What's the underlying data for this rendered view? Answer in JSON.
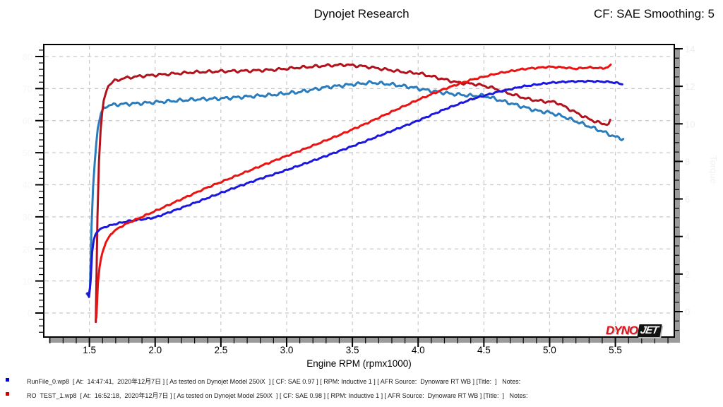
{
  "header": {
    "title": "Dynojet Research",
    "cf_label": "CF: SAE Smoothing: 5"
  },
  "logo": {
    "dyno": "DYNO",
    "jet": "JET"
  },
  "runs": [
    {
      "marker_color": "#0000d4",
      "label": "RunFile_0.wp8  [ At:  14:47:41,  2020年12月7日 ] [ As tested on Dynojet Model 250iX  ] [ CF: SAE 0.97 ] [ RPM: Inductive 1 ] [ AFR Source:  Dynoware RT WB ] [Title:  ]   Notes:"
    },
    {
      "marker_color": "#d40000",
      "label": "RO  TEST_1.wp8  [ At:  16:52:18,  2020年12月7日 ] [ As tested on Dynojet Model 250iX  ] [ CF: SAE 0.98 ] [ RPM: Inductive 1 ] [ AFR Source:  Dynoware RT WB ] [Title:  ]   Notes:"
    }
  ],
  "chart_data": {
    "type": "line",
    "title": "Dynojet Research",
    "xlabel": "Engine RPM (rpmx1000)",
    "x_ticks": [
      1.5,
      2.0,
      2.5,
      3.0,
      3.5,
      4.0,
      4.5,
      5.0,
      5.5
    ],
    "xlim": [
      1.153,
      5.948
    ],
    "x_minor_step": 0.1,
    "grid": "dashed",
    "grid_color": "#c8c8c8",
    "frame_color": "#000000",
    "shadow_color": "#9b9b9b",
    "left_axis": {
      "label": "",
      "ticks": [
        0,
        10,
        20,
        30,
        40,
        50,
        60,
        70,
        80
      ],
      "minor_step": 2,
      "lim": [
        -7.49,
        83.74
      ],
      "tick_label_color": "#f6f6f6"
    },
    "right_axis": {
      "label": "Torque",
      "ticks": [
        0,
        2,
        4,
        6,
        8,
        10,
        12,
        14
      ],
      "minor_step": 0.5,
      "lim": [
        -1.355,
        14.225
      ],
      "tick_label_color": "#ededed",
      "label_color": "#f1f1f1"
    },
    "series": [
      {
        "name": "runfile0-torque",
        "run": "RunFile_0.wp8",
        "axis": "right",
        "color": "#2a7cbd",
        "width": 3,
        "wiggle_amp": 2.2,
        "wiggle_wl": 0.085,
        "points": [
          [
            1.48,
            0.95
          ],
          [
            1.497,
            0.82
          ],
          [
            1.503,
            0.9
          ],
          [
            1.507,
            2.2
          ],
          [
            1.513,
            3.8
          ],
          [
            1.52,
            5.4
          ],
          [
            1.53,
            6.9
          ],
          [
            1.545,
            8.4
          ],
          [
            1.562,
            9.7
          ],
          [
            1.585,
            10.5
          ],
          [
            1.615,
            10.9
          ],
          [
            1.66,
            11.0
          ],
          [
            1.75,
            11.05
          ],
          [
            1.9,
            11.1
          ],
          [
            2.1,
            11.2
          ],
          [
            2.3,
            11.3
          ],
          [
            2.5,
            11.35
          ],
          [
            2.7,
            11.45
          ],
          [
            2.9,
            11.55
          ],
          [
            3.1,
            11.7
          ],
          [
            3.3,
            11.95
          ],
          [
            3.5,
            12.1
          ],
          [
            3.65,
            12.2
          ],
          [
            3.8,
            12.1
          ],
          [
            3.95,
            11.95
          ],
          [
            4.1,
            11.75
          ],
          [
            4.25,
            11.6
          ],
          [
            4.4,
            11.5
          ],
          [
            4.5,
            11.5
          ],
          [
            4.6,
            11.3
          ],
          [
            4.75,
            11.0
          ],
          [
            4.9,
            10.7
          ],
          [
            5.0,
            10.6
          ],
          [
            5.1,
            10.4
          ],
          [
            5.25,
            10.0
          ],
          [
            5.4,
            9.6
          ],
          [
            5.5,
            9.3
          ],
          [
            5.56,
            9.2
          ]
        ]
      },
      {
        "name": "rotest1-torque",
        "run": "RO TEST_1.wp8",
        "axis": "right",
        "color": "#b1121c",
        "width": 3,
        "wiggle_amp": 1.8,
        "wiggle_wl": 0.09,
        "points": [
          [
            1.549,
            -0.55
          ],
          [
            1.552,
            1.0
          ],
          [
            1.556,
            3.0
          ],
          [
            1.561,
            5.0
          ],
          [
            1.568,
            7.0
          ],
          [
            1.577,
            8.8
          ],
          [
            1.59,
            10.2
          ],
          [
            1.61,
            11.3
          ],
          [
            1.64,
            12.0
          ],
          [
            1.69,
            12.3
          ],
          [
            1.78,
            12.45
          ],
          [
            1.9,
            12.55
          ],
          [
            2.1,
            12.65
          ],
          [
            2.3,
            12.75
          ],
          [
            2.5,
            12.8
          ],
          [
            2.7,
            12.82
          ],
          [
            2.9,
            12.88
          ],
          [
            3.1,
            13.0
          ],
          [
            3.3,
            13.1
          ],
          [
            3.45,
            13.15
          ],
          [
            3.6,
            13.05
          ],
          [
            3.75,
            12.9
          ],
          [
            3.9,
            12.75
          ],
          [
            4.0,
            12.7
          ],
          [
            4.15,
            12.45
          ],
          [
            4.3,
            12.2
          ],
          [
            4.45,
            12.1
          ],
          [
            4.55,
            11.95
          ],
          [
            4.7,
            11.6
          ],
          [
            4.85,
            11.3
          ],
          [
            4.95,
            11.2
          ],
          [
            5.05,
            11.15
          ],
          [
            5.2,
            10.6
          ],
          [
            5.3,
            10.25
          ],
          [
            5.4,
            10.0
          ],
          [
            5.45,
            10.0
          ],
          [
            5.47,
            10.25
          ]
        ]
      },
      {
        "name": "runfile0-power",
        "run": "RunFile_0.wp8",
        "axis": "left",
        "color": "#1b17dd",
        "width": 3,
        "wiggle_amp": 1.0,
        "wiggle_wl": 0.07,
        "points": [
          [
            1.485,
            6.2
          ],
          [
            1.497,
            5.0
          ],
          [
            1.503,
            5.3
          ],
          [
            1.508,
            9.0
          ],
          [
            1.514,
            14.0
          ],
          [
            1.521,
            19.0
          ],
          [
            1.531,
            22.5
          ],
          [
            1.55,
            25.0
          ],
          [
            1.59,
            26.4
          ],
          [
            1.64,
            27.1
          ],
          [
            1.71,
            27.9
          ],
          [
            1.8,
            28.7
          ],
          [
            1.9,
            29.2
          ],
          [
            2.0,
            29.8
          ],
          [
            2.2,
            32.8
          ],
          [
            2.4,
            35.9
          ],
          [
            2.6,
            39.0
          ],
          [
            2.8,
            41.9
          ],
          [
            3.0,
            44.6
          ],
          [
            3.2,
            47.5
          ],
          [
            3.4,
            50.5
          ],
          [
            3.6,
            53.6
          ],
          [
            3.8,
            56.8
          ],
          [
            4.0,
            60.0
          ],
          [
            4.2,
            63.5
          ],
          [
            4.4,
            66.6
          ],
          [
            4.6,
            68.9
          ],
          [
            4.8,
            70.7
          ],
          [
            5.0,
            71.8
          ],
          [
            5.15,
            72.2
          ],
          [
            5.3,
            72.3
          ],
          [
            5.45,
            72.1
          ],
          [
            5.52,
            71.7
          ],
          [
            5.56,
            71.3
          ]
        ]
      },
      {
        "name": "rotest1-power",
        "run": "RO TEST_1.wp8",
        "axis": "left",
        "color": "#ed1212",
        "width": 3,
        "wiggle_amp": 1.0,
        "wiggle_wl": 0.075,
        "points": [
          [
            1.553,
            -1.5
          ],
          [
            1.556,
            2.0
          ],
          [
            1.56,
            6.0
          ],
          [
            1.566,
            10.0
          ],
          [
            1.574,
            13.5
          ],
          [
            1.585,
            16.5
          ],
          [
            1.6,
            19.0
          ],
          [
            1.625,
            22.0
          ],
          [
            1.66,
            24.5
          ],
          [
            1.72,
            26.5
          ],
          [
            1.8,
            28.2
          ],
          [
            1.9,
            30.0
          ],
          [
            2.0,
            31.8
          ],
          [
            2.2,
            35.5
          ],
          [
            2.4,
            39.2
          ],
          [
            2.6,
            42.5
          ],
          [
            2.8,
            45.8
          ],
          [
            3.0,
            49.0
          ],
          [
            3.2,
            52.2
          ],
          [
            3.4,
            55.5
          ],
          [
            3.6,
            59.0
          ],
          [
            3.8,
            62.8
          ],
          [
            4.0,
            66.5
          ],
          [
            4.2,
            69.9
          ],
          [
            4.4,
            72.7
          ],
          [
            4.6,
            74.7
          ],
          [
            4.8,
            76.1
          ],
          [
            5.0,
            76.8
          ],
          [
            5.1,
            76.6
          ],
          [
            5.2,
            76.2
          ],
          [
            5.3,
            76.6
          ],
          [
            5.4,
            76.3
          ],
          [
            5.44,
            76.6
          ],
          [
            5.47,
            77.4
          ]
        ]
      }
    ]
  }
}
